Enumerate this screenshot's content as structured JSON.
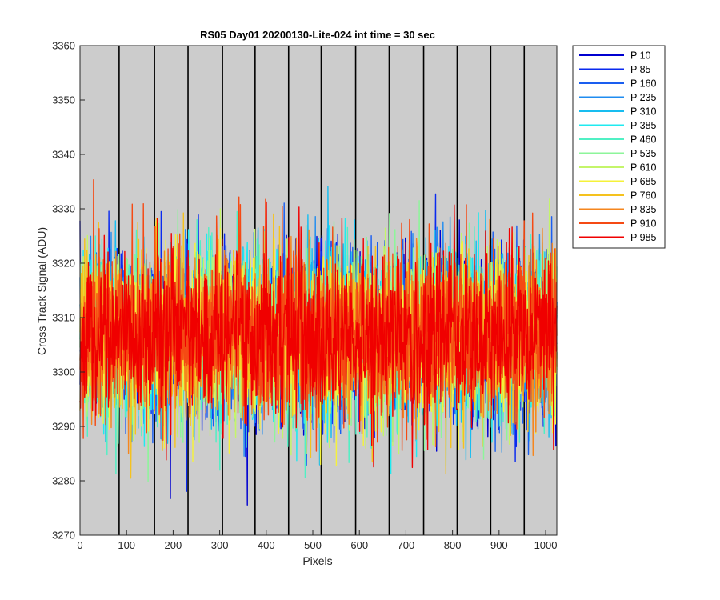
{
  "chart_data": {
    "type": "line",
    "title": "RS05 Day01 20200130-Lite-024 int time = 30 sec",
    "xlabel": "Pixels",
    "ylabel": "Cross Track Signal (ADU)",
    "xlim": [
      0,
      1024
    ],
    "ylim": [
      3270,
      3360
    ],
    "xticks": [
      0,
      100,
      200,
      300,
      400,
      500,
      600,
      700,
      800,
      900,
      1000
    ],
    "yticks": [
      3270,
      3280,
      3290,
      3300,
      3310,
      3320,
      3330,
      3340,
      3350,
      3360
    ],
    "vertical_lines": [
      84,
      160,
      232,
      306,
      376,
      448,
      518,
      592,
      664,
      738,
      810,
      882,
      954
    ],
    "grid": false,
    "legend_position": "outside-top-right",
    "center_level": 3307,
    "noise_sd": 7.5,
    "n_points": 1024,
    "series": [
      {
        "name": "P 10",
        "color": "#0000d0"
      },
      {
        "name": "P 85",
        "color": "#0a2aef"
      },
      {
        "name": "P 160",
        "color": "#1a5ef0"
      },
      {
        "name": "P 235",
        "color": "#1f8cf0"
      },
      {
        "name": "P 310",
        "color": "#18bdf0"
      },
      {
        "name": "P 385",
        "color": "#20eaf0"
      },
      {
        "name": "P 460",
        "color": "#50f0c4"
      },
      {
        "name": "P 535",
        "color": "#8df59a"
      },
      {
        "name": "P 610",
        "color": "#c4f56a"
      },
      {
        "name": "P 685",
        "color": "#f5f23a"
      },
      {
        "name": "P 760",
        "color": "#f5c21e"
      },
      {
        "name": "P 835",
        "color": "#f5861e"
      },
      {
        "name": "P 910",
        "color": "#f54a14"
      },
      {
        "name": "P 985",
        "color": "#f00000"
      }
    ]
  }
}
